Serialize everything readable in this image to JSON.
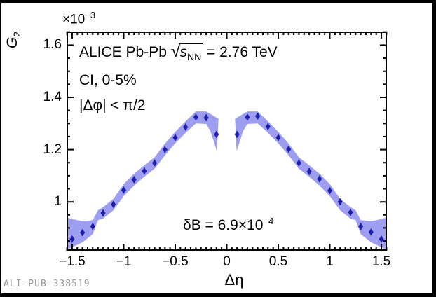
{
  "watermark": "ALI-PUB-338519",
  "colors": {
    "band": "#9e9ef0",
    "marker": "#1d1dae",
    "frame": "#000000",
    "watermark_gray": "#9a9a9a"
  },
  "chart_data": {
    "type": "scatter",
    "title": "",
    "annotations": {
      "alice": {
        "prefix": "ALICE Pb-Pb ",
        "sqrt_symbol": "√",
        "sqrt_arg": "s",
        "sqrt_sub": "NN",
        "suffix": " = 2.76 TeV"
      },
      "centrality": "CI, 0-5%",
      "phi_cut": "|Δφ| < π/2",
      "delta_b": {
        "base": "δB = 6.9×10",
        "exp": "−4"
      }
    },
    "axes": {
      "x": {
        "label": "Δη",
        "range": [
          -1.554,
          1.554
        ],
        "major_ticks": [
          -1.5,
          -1,
          -0.5,
          0,
          0.5,
          1,
          1.5
        ],
        "tick_labels": [
          "−1.5",
          "−1",
          "−0.5",
          "0",
          "0.5",
          "1",
          "1.5"
        ],
        "minor_step": 0.05
      },
      "y": {
        "label_letter": "G",
        "label_sub": "2",
        "multiplier_base": "×10",
        "multiplier_exp": "−3",
        "unit_scale": "1e-3",
        "range": [
          0.8127,
          1.652
        ],
        "major_ticks": [
          1,
          1.2,
          1.4,
          1.6
        ],
        "tick_labels": [
          "1",
          "1.2",
          "1.4",
          "1.6"
        ],
        "minor_step": 0.05
      },
      "grid": false
    },
    "series": {
      "name": "G2 vs Delta-eta, CI 0-5%",
      "y_error": 0.013,
      "points": [
        [
          -1.5,
          0.857
        ],
        [
          -1.4,
          0.882
        ],
        [
          -1.3,
          0.906
        ],
        [
          -1.2,
          0.957
        ],
        [
          -1.1,
          0.99
        ],
        [
          -1.0,
          1.045
        ],
        [
          -0.9,
          1.085
        ],
        [
          -0.8,
          1.118
        ],
        [
          -0.7,
          1.149
        ],
        [
          -0.6,
          1.2
        ],
        [
          -0.5,
          1.246
        ],
        [
          -0.4,
          1.286
        ],
        [
          -0.3,
          1.324
        ],
        [
          -0.2,
          1.322
        ],
        [
          -0.1,
          1.258
        ],
        [
          0.1,
          1.258
        ],
        [
          0.2,
          1.324
        ],
        [
          0.3,
          1.328
        ],
        [
          0.4,
          1.288
        ],
        [
          0.5,
          1.246
        ],
        [
          0.6,
          1.201
        ],
        [
          0.7,
          1.149
        ],
        [
          0.8,
          1.116
        ],
        [
          0.9,
          1.088
        ],
        [
          1.0,
          1.043
        ],
        [
          1.1,
          1.0
        ],
        [
          1.2,
          0.96
        ],
        [
          1.3,
          0.906
        ],
        [
          1.4,
          0.884
        ],
        [
          1.5,
          0.857
        ]
      ],
      "band_left": [
        [
          -1.554,
          0.94
        ],
        [
          -1.5,
          0.934
        ],
        [
          -1.4,
          0.926
        ],
        [
          -1.3,
          0.93
        ],
        [
          -1.25,
          0.968
        ],
        [
          -1.2,
          0.98
        ],
        [
          -1.1,
          1.012
        ],
        [
          -1.0,
          1.068
        ],
        [
          -0.9,
          1.108
        ],
        [
          -0.8,
          1.14
        ],
        [
          -0.7,
          1.171
        ],
        [
          -0.6,
          1.223
        ],
        [
          -0.5,
          1.268
        ],
        [
          -0.4,
          1.308
        ],
        [
          -0.3,
          1.346
        ],
        [
          -0.2,
          1.346
        ],
        [
          -0.08,
          1.318
        ],
        [
          -0.095,
          1.194
        ],
        [
          -0.16,
          1.272
        ],
        [
          -0.2,
          1.298
        ],
        [
          -0.3,
          1.3
        ],
        [
          -0.4,
          1.264
        ],
        [
          -0.5,
          1.224
        ],
        [
          -0.6,
          1.178
        ],
        [
          -0.7,
          1.127
        ],
        [
          -0.8,
          1.096
        ],
        [
          -0.9,
          1.062
        ],
        [
          -1.0,
          1.022
        ],
        [
          -1.1,
          0.968
        ],
        [
          -1.2,
          0.936
        ],
        [
          -1.25,
          0.93
        ],
        [
          -1.3,
          0.876
        ],
        [
          -1.4,
          0.845
        ],
        [
          -1.5,
          0.826
        ],
        [
          -1.554,
          0.818
        ]
      ],
      "band_right": [
        [
          0.08,
          1.318
        ],
        [
          0.2,
          1.346
        ],
        [
          0.3,
          1.346
        ],
        [
          0.4,
          1.308
        ],
        [
          0.5,
          1.268
        ],
        [
          0.6,
          1.223
        ],
        [
          0.7,
          1.171
        ],
        [
          0.8,
          1.14
        ],
        [
          0.9,
          1.108
        ],
        [
          1.0,
          1.068
        ],
        [
          1.1,
          1.012
        ],
        [
          1.2,
          0.98
        ],
        [
          1.25,
          0.968
        ],
        [
          1.3,
          0.93
        ],
        [
          1.4,
          0.926
        ],
        [
          1.5,
          0.934
        ],
        [
          1.554,
          0.94
        ],
        [
          1.554,
          0.818
        ],
        [
          1.5,
          0.826
        ],
        [
          1.4,
          0.845
        ],
        [
          1.3,
          0.876
        ],
        [
          1.25,
          0.93
        ],
        [
          1.2,
          0.936
        ],
        [
          1.1,
          0.968
        ],
        [
          1.0,
          1.022
        ],
        [
          0.9,
          1.062
        ],
        [
          0.8,
          1.096
        ],
        [
          0.7,
          1.127
        ],
        [
          0.6,
          1.178
        ],
        [
          0.5,
          1.224
        ],
        [
          0.4,
          1.264
        ],
        [
          0.3,
          1.3
        ],
        [
          0.2,
          1.298
        ],
        [
          0.16,
          1.272
        ],
        [
          0.095,
          1.194
        ]
      ]
    }
  }
}
